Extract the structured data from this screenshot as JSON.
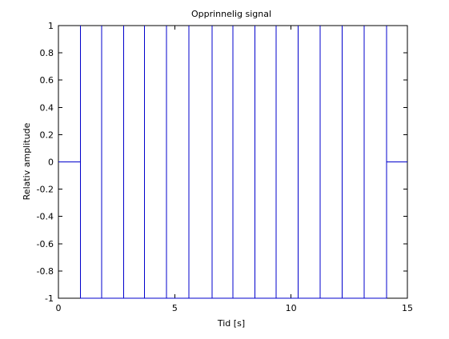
{
  "figure": {
    "title": "Opprinnelig signal"
  },
  "chart_data": {
    "type": "line",
    "title": "Opprinnelig signal",
    "xlabel": "Tid [s]",
    "ylabel": "Relativ amplitude",
    "xlim": [
      0,
      15
    ],
    "ylim": [
      -1,
      1
    ],
    "xticks": [
      0,
      5,
      10,
      15
    ],
    "xtick_labels": [
      "0",
      "5",
      "10",
      "15"
    ],
    "yticks": [
      1,
      0.8,
      0.6,
      0.4,
      0.2,
      0,
      -0.2,
      -0.4,
      -0.6,
      -0.8,
      -1
    ],
    "ytick_labels": [
      "1",
      "0.8",
      "0.6",
      "0.4",
      "0.2",
      "0",
      "-0.2",
      "-0.4",
      "-0.6",
      "-0.8",
      "-1"
    ],
    "grid": false,
    "line_color": "#0000cc",
    "series": [
      {
        "x": [
          0,
          0.95,
          0.95,
          0.95,
          1.85,
          1.85,
          1.85,
          2.8,
          2.8,
          2.8,
          3.7,
          3.7,
          3.7,
          4.65,
          4.65,
          4.65,
          5.6,
          5.6,
          5.6,
          6.6,
          6.6,
          6.6,
          7.5,
          7.5,
          7.5,
          8.45,
          8.45,
          8.45,
          9.35,
          9.35,
          9.35,
          10.3,
          10.3,
          10.3,
          11.25,
          11.25,
          11.25,
          12.2,
          12.2,
          12.2,
          13.15,
          13.15,
          13.15,
          14.1,
          14.1,
          14.1,
          15
        ],
        "y": [
          0,
          0,
          1,
          -1,
          -1,
          1,
          -1,
          -1,
          1,
          -1,
          -1,
          1,
          -1,
          -1,
          1,
          -1,
          -1,
          1,
          -1,
          -1,
          1,
          -1,
          -1,
          1,
          -1,
          -1,
          1,
          -1,
          -1,
          1,
          -1,
          -1,
          1,
          -1,
          -1,
          1,
          -1,
          -1,
          1,
          -1,
          -1,
          1,
          -1,
          -1,
          1,
          0,
          0
        ]
      }
    ]
  }
}
